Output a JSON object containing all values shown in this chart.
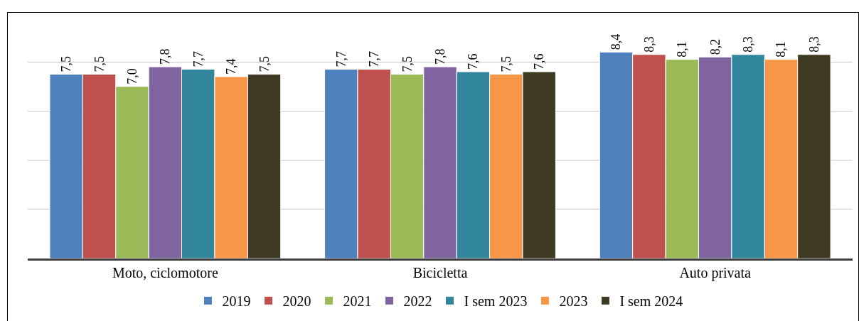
{
  "chart_data": {
    "type": "bar",
    "categories": [
      "Moto, ciclomotore",
      "Bicicletta",
      "Auto privata"
    ],
    "series": [
      {
        "name": "2019",
        "color": "#4f81bd",
        "values": [
          7.5,
          7.7,
          8.4
        ],
        "value_labels": [
          "7,5",
          "7,7",
          "8,4"
        ]
      },
      {
        "name": "2020",
        "color": "#c0504d",
        "values": [
          7.5,
          7.7,
          8.3
        ],
        "value_labels": [
          "7,5",
          "7,7",
          "8,3"
        ]
      },
      {
        "name": "2021",
        "color": "#9bbb59",
        "values": [
          7.0,
          7.5,
          8.1
        ],
        "value_labels": [
          "7,0",
          "7,5",
          "8,1"
        ]
      },
      {
        "name": "2022",
        "color": "#8064a2",
        "values": [
          7.8,
          7.8,
          8.2
        ],
        "value_labels": [
          "7,8",
          "7,8",
          "8,2"
        ]
      },
      {
        "name": "I sem 2023",
        "color": "#31859c",
        "values": [
          7.7,
          7.6,
          8.3
        ],
        "value_labels": [
          "7,7",
          "7,6",
          "8,3"
        ]
      },
      {
        "name": "2023",
        "color": "#f79646",
        "values": [
          7.4,
          7.5,
          8.1
        ],
        "value_labels": [
          "7,4",
          "7,5",
          "8,1"
        ]
      },
      {
        "name": "I sem 2024",
        "color": "#3f3a22",
        "values": [
          7.5,
          7.6,
          8.3
        ],
        "value_labels": [
          "7,5",
          "7,6",
          "8,3"
        ]
      }
    ],
    "grid": "y",
    "legend": "bottom",
    "tick_labels": "x"
  }
}
